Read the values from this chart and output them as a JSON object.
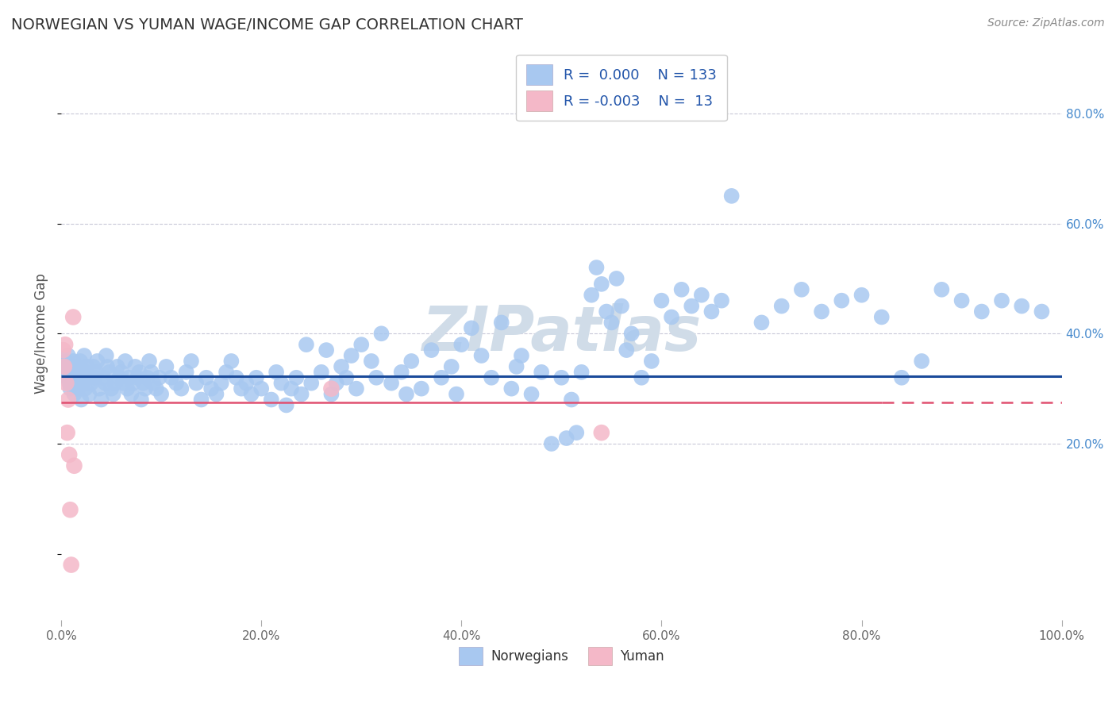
{
  "title": "NORWEGIAN VS YUMAN WAGE/INCOME GAP CORRELATION CHART",
  "source": "Source: ZipAtlas.com",
  "ylabel": "Wage/Income Gap",
  "xlim": [
    0.0,
    1.0
  ],
  "ylim": [
    -0.12,
    0.92
  ],
  "x_ticks": [
    0.0,
    0.2,
    0.4,
    0.6,
    0.8,
    1.0
  ],
  "x_tick_labels": [
    "0.0%",
    "20.0%",
    "40.0%",
    "60.0%",
    "80.0%",
    "100.0%"
  ],
  "y_ticks": [
    0.2,
    0.4,
    0.6,
    0.8
  ],
  "y_tick_labels": [
    "20.0%",
    "40.0%",
    "60.0%",
    "80.0%"
  ],
  "norwegian_color": "#a8c8f0",
  "yuman_color": "#f4b8c8",
  "norwegian_line_color": "#1a4a9a",
  "yuman_line_color": "#e05070",
  "regression_norwegian_y": 0.322,
  "regression_yuman_y": 0.275,
  "watermark_text": "ZIPatlas",
  "watermark_color": "#d0dce8",
  "background_color": "#ffffff",
  "grid_color": "#c8c8d8",
  "norwegian_points": [
    [
      0.003,
      0.34
    ],
    [
      0.004,
      0.33
    ],
    [
      0.005,
      0.35
    ],
    [
      0.006,
      0.32
    ],
    [
      0.007,
      0.36
    ],
    [
      0.008,
      0.31
    ],
    [
      0.009,
      0.3
    ],
    [
      0.01,
      0.34
    ],
    [
      0.011,
      0.33
    ],
    [
      0.012,
      0.35
    ],
    [
      0.013,
      0.29
    ],
    [
      0.014,
      0.32
    ],
    [
      0.015,
      0.31
    ],
    [
      0.016,
      0.34
    ],
    [
      0.017,
      0.3
    ],
    [
      0.018,
      0.33
    ],
    [
      0.019,
      0.35
    ],
    [
      0.02,
      0.28
    ],
    [
      0.021,
      0.32
    ],
    [
      0.022,
      0.31
    ],
    [
      0.023,
      0.36
    ],
    [
      0.024,
      0.3
    ],
    [
      0.025,
      0.33
    ],
    [
      0.026,
      0.34
    ],
    [
      0.027,
      0.32
    ],
    [
      0.028,
      0.29
    ],
    [
      0.03,
      0.31
    ],
    [
      0.032,
      0.34
    ],
    [
      0.033,
      0.32
    ],
    [
      0.035,
      0.33
    ],
    [
      0.036,
      0.35
    ],
    [
      0.038,
      0.3
    ],
    [
      0.04,
      0.28
    ],
    [
      0.042,
      0.32
    ],
    [
      0.044,
      0.31
    ],
    [
      0.045,
      0.36
    ],
    [
      0.046,
      0.34
    ],
    [
      0.048,
      0.33
    ],
    [
      0.05,
      0.3
    ],
    [
      0.052,
      0.29
    ],
    [
      0.054,
      0.31
    ],
    [
      0.056,
      0.34
    ],
    [
      0.058,
      0.32
    ],
    [
      0.06,
      0.33
    ],
    [
      0.062,
      0.31
    ],
    [
      0.064,
      0.35
    ],
    [
      0.066,
      0.3
    ],
    [
      0.068,
      0.32
    ],
    [
      0.07,
      0.29
    ],
    [
      0.072,
      0.31
    ],
    [
      0.074,
      0.34
    ],
    [
      0.076,
      0.32
    ],
    [
      0.078,
      0.33
    ],
    [
      0.08,
      0.28
    ],
    [
      0.082,
      0.31
    ],
    [
      0.084,
      0.3
    ],
    [
      0.086,
      0.32
    ],
    [
      0.088,
      0.35
    ],
    [
      0.09,
      0.33
    ],
    [
      0.092,
      0.31
    ],
    [
      0.095,
      0.3
    ],
    [
      0.098,
      0.32
    ],
    [
      0.1,
      0.29
    ],
    [
      0.105,
      0.34
    ],
    [
      0.11,
      0.32
    ],
    [
      0.115,
      0.31
    ],
    [
      0.12,
      0.3
    ],
    [
      0.125,
      0.33
    ],
    [
      0.13,
      0.35
    ],
    [
      0.135,
      0.31
    ],
    [
      0.14,
      0.28
    ],
    [
      0.145,
      0.32
    ],
    [
      0.15,
      0.3
    ],
    [
      0.155,
      0.29
    ],
    [
      0.16,
      0.31
    ],
    [
      0.165,
      0.33
    ],
    [
      0.17,
      0.35
    ],
    [
      0.175,
      0.32
    ],
    [
      0.18,
      0.3
    ],
    [
      0.185,
      0.31
    ],
    [
      0.19,
      0.29
    ],
    [
      0.195,
      0.32
    ],
    [
      0.2,
      0.3
    ],
    [
      0.21,
      0.28
    ],
    [
      0.215,
      0.33
    ],
    [
      0.22,
      0.31
    ],
    [
      0.225,
      0.27
    ],
    [
      0.23,
      0.3
    ],
    [
      0.235,
      0.32
    ],
    [
      0.24,
      0.29
    ],
    [
      0.245,
      0.38
    ],
    [
      0.25,
      0.31
    ],
    [
      0.26,
      0.33
    ],
    [
      0.265,
      0.37
    ],
    [
      0.27,
      0.29
    ],
    [
      0.275,
      0.31
    ],
    [
      0.28,
      0.34
    ],
    [
      0.285,
      0.32
    ],
    [
      0.29,
      0.36
    ],
    [
      0.295,
      0.3
    ],
    [
      0.3,
      0.38
    ],
    [
      0.31,
      0.35
    ],
    [
      0.315,
      0.32
    ],
    [
      0.32,
      0.4
    ],
    [
      0.33,
      0.31
    ],
    [
      0.34,
      0.33
    ],
    [
      0.345,
      0.29
    ],
    [
      0.35,
      0.35
    ],
    [
      0.36,
      0.3
    ],
    [
      0.37,
      0.37
    ],
    [
      0.38,
      0.32
    ],
    [
      0.39,
      0.34
    ],
    [
      0.395,
      0.29
    ],
    [
      0.4,
      0.38
    ],
    [
      0.41,
      0.41
    ],
    [
      0.42,
      0.36
    ],
    [
      0.43,
      0.32
    ],
    [
      0.44,
      0.42
    ],
    [
      0.45,
      0.3
    ],
    [
      0.455,
      0.34
    ],
    [
      0.46,
      0.36
    ],
    [
      0.47,
      0.29
    ],
    [
      0.48,
      0.33
    ],
    [
      0.49,
      0.2
    ],
    [
      0.5,
      0.32
    ],
    [
      0.505,
      0.21
    ],
    [
      0.51,
      0.28
    ],
    [
      0.515,
      0.22
    ],
    [
      0.52,
      0.33
    ],
    [
      0.53,
      0.47
    ],
    [
      0.535,
      0.52
    ],
    [
      0.54,
      0.49
    ],
    [
      0.545,
      0.44
    ],
    [
      0.55,
      0.42
    ],
    [
      0.555,
      0.5
    ],
    [
      0.56,
      0.45
    ],
    [
      0.565,
      0.37
    ],
    [
      0.57,
      0.4
    ],
    [
      0.58,
      0.32
    ],
    [
      0.59,
      0.35
    ],
    [
      0.6,
      0.46
    ],
    [
      0.61,
      0.43
    ],
    [
      0.62,
      0.48
    ],
    [
      0.63,
      0.45
    ],
    [
      0.64,
      0.47
    ],
    [
      0.65,
      0.44
    ],
    [
      0.66,
      0.46
    ],
    [
      0.67,
      0.65
    ],
    [
      0.7,
      0.42
    ],
    [
      0.72,
      0.45
    ],
    [
      0.74,
      0.48
    ],
    [
      0.76,
      0.44
    ],
    [
      0.78,
      0.46
    ],
    [
      0.8,
      0.47
    ],
    [
      0.82,
      0.43
    ],
    [
      0.84,
      0.32
    ],
    [
      0.86,
      0.35
    ],
    [
      0.88,
      0.48
    ],
    [
      0.9,
      0.46
    ],
    [
      0.92,
      0.44
    ],
    [
      0.94,
      0.46
    ],
    [
      0.96,
      0.45
    ],
    [
      0.98,
      0.44
    ]
  ],
  "yuman_points": [
    [
      0.002,
      0.37
    ],
    [
      0.003,
      0.34
    ],
    [
      0.004,
      0.38
    ],
    [
      0.005,
      0.31
    ],
    [
      0.006,
      0.22
    ],
    [
      0.007,
      0.28
    ],
    [
      0.008,
      0.18
    ],
    [
      0.009,
      0.08
    ],
    [
      0.01,
      -0.02
    ],
    [
      0.012,
      0.43
    ],
    [
      0.013,
      0.16
    ],
    [
      0.27,
      0.3
    ],
    [
      0.54,
      0.22
    ]
  ]
}
